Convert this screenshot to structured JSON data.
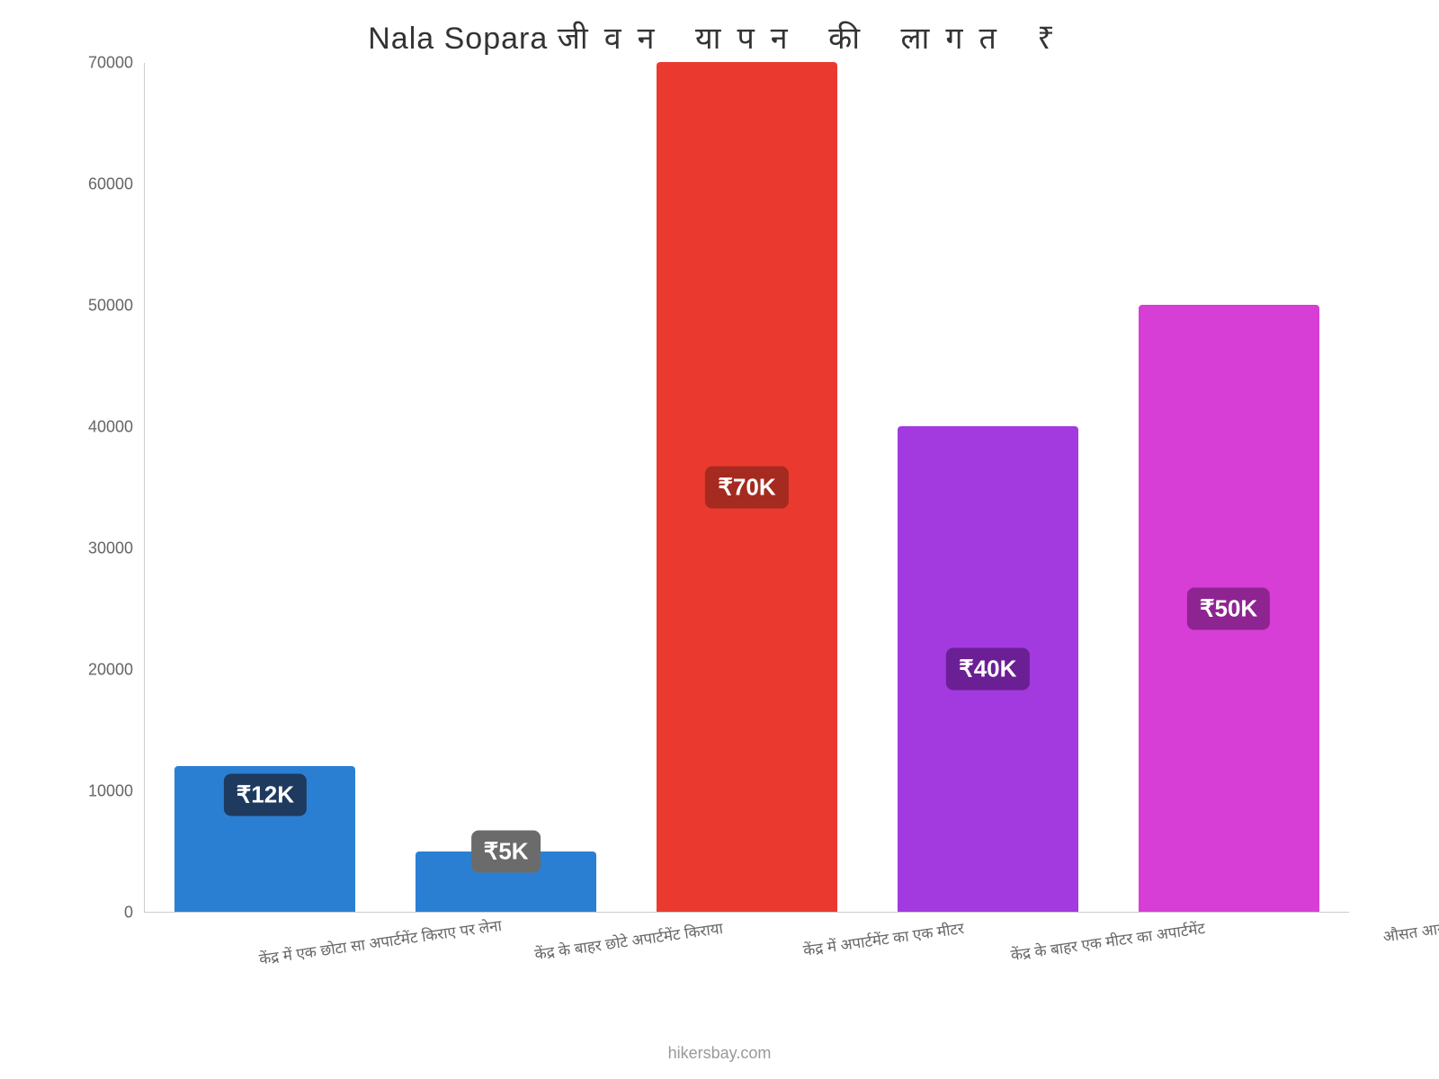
{
  "chart": {
    "type": "bar",
    "title_pre": "Nala Sopara ",
    "title_spaced": "जीवन यापन की लागत ₹",
    "title_color": "#333333",
    "title_fontsize": 34,
    "background_color": "#ffffff",
    "axis_color": "#cccccc",
    "tick_color": "#666666",
    "tick_fontsize": 18,
    "xlabel_fontsize": 17,
    "xlabel_rotation_deg": -8,
    "ylim_max": 70000,
    "ytick_step": 10000,
    "yticks": [
      "0",
      "10000",
      "20000",
      "30000",
      "40000",
      "50000",
      "60000",
      "70000"
    ],
    "bar_width_ratio": 0.75,
    "categories": [
      "केंद्र में एक छोटा सा अपार्टमेंट किराए पर लेना",
      "केंद्र के बाहर छोटे अपार्टमेंट किराया",
      "केंद्र में अपार्टमेंट का एक मीटर",
      "केंद्र के बाहर एक मीटर का अपार्टमेंट",
      "औसत आय"
    ],
    "bars": [
      {
        "value": 12000,
        "value_label": "₹12K",
        "bar_color": "#2b7fd3",
        "label_bg": "#1e3a5f"
      },
      {
        "value": 5000,
        "value_label": "₹5K",
        "bar_color": "#2b7fd3",
        "label_bg": "#6b6b6b"
      },
      {
        "value": 70000,
        "value_label": "₹70K",
        "bar_color": "#ea3a2f",
        "label_bg": "#a52a1f"
      },
      {
        "value": 40000,
        "value_label": "₹40K",
        "bar_color": "#a23ae0",
        "label_bg": "#6b1f94"
      },
      {
        "value": 50000,
        "value_label": "₹50K",
        "bar_color": "#d63ed6",
        "label_bg": "#8e2491"
      }
    ],
    "value_label_fontsize": 26,
    "value_label_color": "#ffffff",
    "attribution": "hikersbay.com",
    "attribution_color": "#999999",
    "attribution_fontsize": 18
  }
}
